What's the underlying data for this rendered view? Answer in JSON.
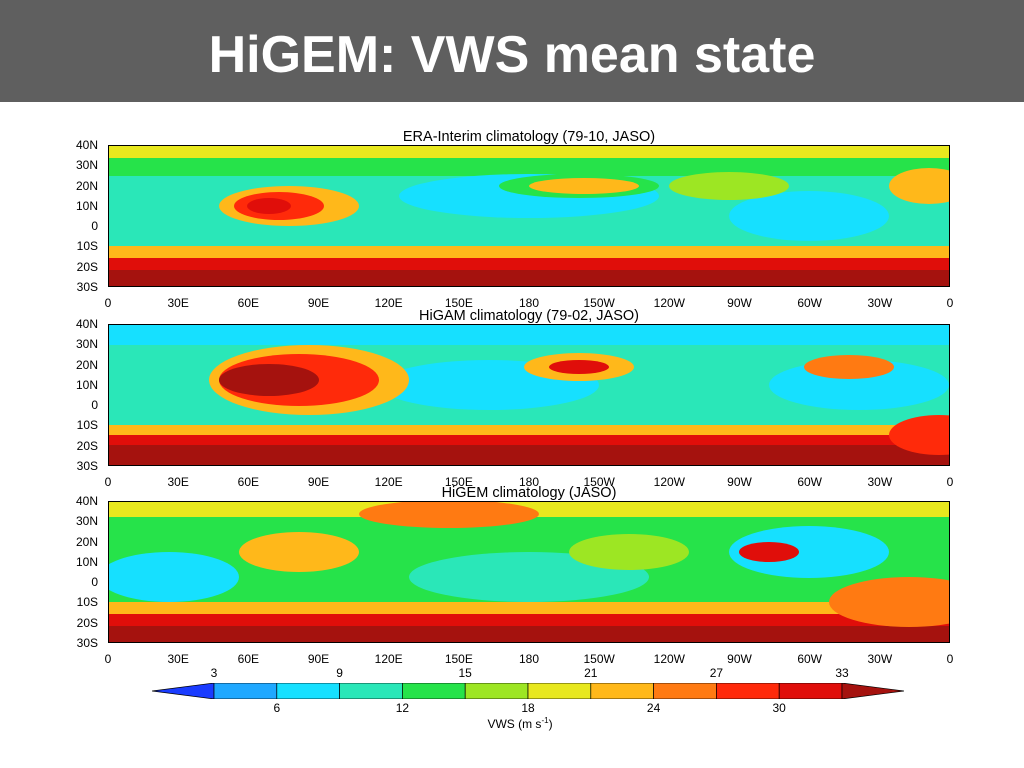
{
  "title": "HiGEM: VWS mean state",
  "panels": [
    {
      "title": "ERA-Interim climatology (79-10, JASO)"
    },
    {
      "title": "HiGAM climatology (79-02, JASO)"
    },
    {
      "title": "HiGEM climatology (JASO)"
    }
  ],
  "lat_labels": [
    "40N",
    "30N",
    "20N",
    "10N",
    "0",
    "10S",
    "20S",
    "30S"
  ],
  "lon_labels": [
    "0",
    "30E",
    "60E",
    "90E",
    "120E",
    "150E",
    "180",
    "150W",
    "120W",
    "90W",
    "60W",
    "30W",
    "0"
  ],
  "colorbar": {
    "upper_labels": [
      "3",
      "9",
      "15",
      "21",
      "27",
      "33"
    ],
    "lower_labels": [
      "6",
      "12",
      "18",
      "24",
      "30"
    ],
    "unit_label": "VWS (m s",
    "unit_sup": "-1",
    "unit_close": ")",
    "colors": [
      "#1a3cff",
      "#1fa8ff",
      "#16e0ff",
      "#2ae7b8",
      "#26e34a",
      "#9de623",
      "#e8e81e",
      "#ffb81a",
      "#ff7a12",
      "#ff2a0a",
      "#e00e0a",
      "#a5120e"
    ]
  }
}
